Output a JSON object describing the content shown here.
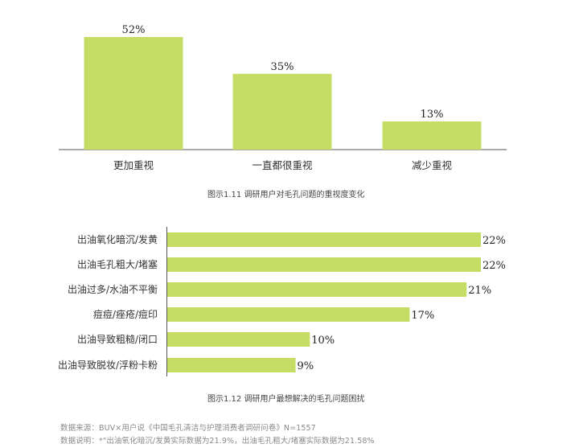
{
  "chart_data": [
    {
      "type": "bar",
      "orientation": "vertical",
      "categories": [
        "更加重视",
        "一直都很重视",
        "减少重视"
      ],
      "values": [
        52,
        35,
        13
      ],
      "labels": [
        "52%",
        "35%",
        "13%"
      ],
      "unit": "%",
      "bar_color": "#c5dd64",
      "caption": "图示1.11  调研用户对毛孔问题的重视度变化"
    },
    {
      "type": "bar",
      "orientation": "horizontal",
      "categories": [
        "出油氧化暗沉/发黄",
        "出油毛孔粗大/堵塞",
        "出油过多/水油不平衡",
        "痘痘/痤疮/痘印",
        "出油导致粗糙/闭口",
        "出油导致脱妆/浮粉卡粉"
      ],
      "values": [
        22,
        22,
        21,
        17,
        10,
        9
      ],
      "labels": [
        "22%",
        "22%",
        "21%",
        "17%",
        "10%",
        "9%"
      ],
      "unit": "%",
      "bar_color": "#c5dd64",
      "caption": "图示1.12  调研用户最想解决的毛孔问题困扰"
    }
  ],
  "footer": {
    "source": "数据来源：BUV×用户说《中国毛孔清洁与护理消费者调研问卷》N=1557",
    "note": "数据说明：*\"出油氧化暗沉/发黄实际数据为21.9%，出油毛孔粗大/堵塞实际数据为21.58%"
  }
}
